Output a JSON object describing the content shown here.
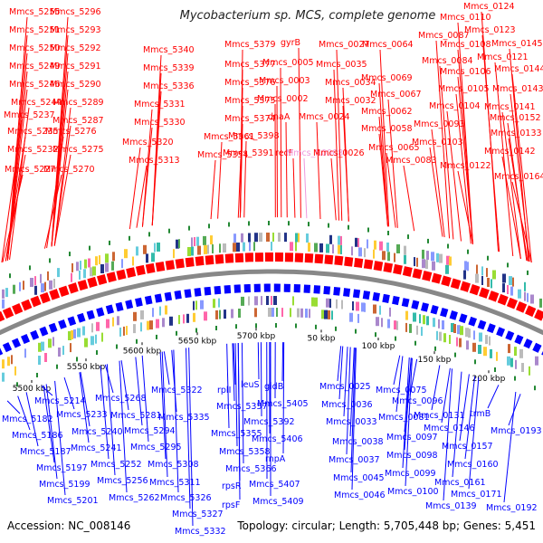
{
  "title": "Mycobacterium sp. MCS, complete genome",
  "footer": {
    "accession": "Accession: NC_008146",
    "summary": "Topology: circular; Length: 5,705,448 bp; Genes: 5,451"
  },
  "colors": {
    "forward": "#ff0000",
    "reverse": "#0000ff",
    "rna": "#ee99dd",
    "backbone": "#888888",
    "tick": "#228833"
  },
  "kbp_labels": [
    "5500 kbp",
    "5550 kbp",
    "5600 kbp",
    "5650 kbp",
    "5700 kbp",
    "50 kbp",
    "100 kbp",
    "150 kbp",
    "200 kbp"
  ],
  "top_genes": [
    "Mmcs_5255",
    "Mmcs_5296",
    "Mmcs_5251",
    "Mmcs_5293",
    "Mmcs_5250",
    "Mmcs_5292",
    "Mmcs_5249",
    "Mmcs_5291",
    "Mmcs_5246",
    "Mmcs_5290",
    "Mmcs_5244",
    "Mmcs_5289",
    "Mmcs_5237",
    "Mmcs_5287",
    "Mmcs_5235",
    "Mmcs_5276",
    "Mmcs_5232",
    "Mmcs_5275",
    "Mmcs_5227",
    "Mmcs_5270",
    "Mmcs_5340",
    "Mmcs_5339",
    "Mmcs_5336",
    "Mmcs_5331",
    "Mmcs_5330",
    "Mmcs_5320",
    "Mmcs_5313",
    "Mmcs_5379",
    "Mmcs_5377",
    "Mmcs_5376",
    "Mmcs_5375",
    "Mmcs_5374",
    "Mmcs_5361",
    "Mmcs_5354",
    "Mmcs_5398",
    "Mmcs_5391",
    "gyrB",
    "Mmcs_0005",
    "Mmcs_0003",
    "Mmcs_0002",
    "dnaA",
    "recF",
    "Mmcs_R0008",
    "Mmcs_0027",
    "Mmcs_0035",
    "Mmcs_0034",
    "Mmcs_0032",
    "Mmcs_0024",
    "Mmcs_0026",
    "Mmcs_0064",
    "Mmcs_0069",
    "Mmcs_0067",
    "Mmcs_0062",
    "Mmcs_0058",
    "Mmcs_0065",
    "Mmcs_0083",
    "Mmcs_0087",
    "Mmcs_0084",
    "Mmcs_0110",
    "Mmcs_0108",
    "Mmcs_0106",
    "Mmcs_0105",
    "Mmcs_0104",
    "Mmcs_0093",
    "Mmcs_0103",
    "Mmcs_0122",
    "Mmcs_0124",
    "Mmcs_0123",
    "Mmcs_0121",
    "Mmcs_0145",
    "Mmcs_0144",
    "Mmcs_0143",
    "Mmcs_0141",
    "Mmcs_0152",
    "Mmcs_0133",
    "Mmcs_0142",
    "Mmcs_0164"
  ],
  "bottom_genes": [
    "Mmcs_5214",
    "Mmcs_5182",
    "Mmcs_5186",
    "Mmcs_5187",
    "Mmcs_5197",
    "Mmcs_5199",
    "Mmcs_5201",
    "Mmcs_5268",
    "Mmcs_5233",
    "Mmcs_5281",
    "Mmcs_5240",
    "Mmcs_5241",
    "Mmcs_5252",
    "Mmcs_5256",
    "Mmcs_5262",
    "Mmcs_5294",
    "Mmcs_5295",
    "Mmcs_5308",
    "Mmcs_5311",
    "Mmcs_5322",
    "Mmcs_5335",
    "Mmcs_5326",
    "Mmcs_5327",
    "Mmcs_5332",
    "rplI",
    "Mmcs_5357",
    "Mmcs_5355",
    "Mmcs_5358",
    "Mmcs_5366",
    "rpsR",
    "rpsF",
    "leuS",
    "gidB",
    "Mmcs_5405",
    "Mmcs_5392",
    "Mmcs_5406",
    "rnpA",
    "Mmcs_5407",
    "Mmcs_5409",
    "Mmcs_0025",
    "Mmcs_0036",
    "Mmcs_0033",
    "Mmcs_0038",
    "Mmcs_0037",
    "Mmcs_0045",
    "Mmcs_0046",
    "Mmcs_0075",
    "Mmcs_0096",
    "Mmcs_0081",
    "Mmcs_0097",
    "Mmcs_0098",
    "Mmcs_0099",
    "Mmcs_0100",
    "Mmcs_0131",
    "trmB",
    "Mmcs_0146",
    "Mmcs_0193",
    "Mmcs_0157",
    "Mmcs_0160",
    "Mmcs_0161",
    "Mmcs_0171",
    "Mmcs_0139",
    "Mmcs_0192"
  ]
}
